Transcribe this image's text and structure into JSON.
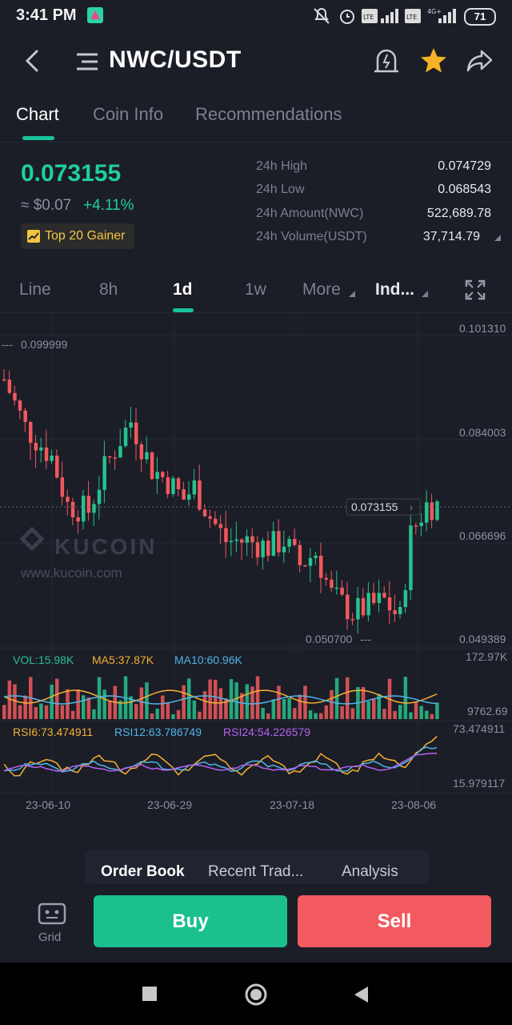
{
  "status_bar": {
    "time": "3:41 PM",
    "battery": "71"
  },
  "header": {
    "pair": "NWC/USDT"
  },
  "tabs": [
    {
      "label": "Chart",
      "active": true
    },
    {
      "label": "Coin Info",
      "active": false
    },
    {
      "label": "Recommendations",
      "active": false
    }
  ],
  "price": {
    "last": "0.073155",
    "approx_usd": "≈ $0.07",
    "change": "+4.11%",
    "badge": "Top 20 Gainer"
  },
  "stats": [
    {
      "label": "24h High",
      "value": "0.074729"
    },
    {
      "label": "24h Low",
      "value": "0.068543"
    },
    {
      "label": "24h Amount(NWC)",
      "value": "522,689.78"
    },
    {
      "label": "24h Volume(USDT)",
      "value": "37,714.79"
    }
  ],
  "intervals": [
    {
      "label": "Line",
      "active": false
    },
    {
      "label": "8h",
      "active": false
    },
    {
      "label": "1d",
      "active": true
    },
    {
      "label": "1w",
      "active": false
    },
    {
      "label": "More",
      "active": false
    },
    {
      "label": "Ind...",
      "active": false
    }
  ],
  "chart_data": {
    "type": "candlestick",
    "price_axis": [
      "0.101310",
      "0.084003",
      "0.066696",
      "0.049389"
    ],
    "high_marker": "0.099999",
    "low_marker": "0.050700",
    "current_price_tag": "0.073155",
    "watermark": "KUCOIN",
    "watermark_url": "www.kucoin.com",
    "volume": {
      "vol": "VOL:15.98K",
      "ma5": "MA5:37.87K",
      "ma10": "MA10:60.96K",
      "axis_max": "172.97K",
      "axis_min": "9762.69"
    },
    "rsi": {
      "rsi6": "RSI6:73.474911",
      "rsi12": "RSI12:63.786749",
      "rsi24": "RSI24:54.226579",
      "axis_max": "73.474911",
      "axis_min": "15.979117"
    },
    "x_labels": [
      "23-06-10",
      "23-06-29",
      "23-07-18",
      "23-08-06"
    ],
    "colors": {
      "up": "#26c28d",
      "down": "#f0595d",
      "ma5": "#f5b031",
      "ma10": "#4fb5e8",
      "rsi24": "#b461f0"
    }
  },
  "order_tabs": [
    {
      "label": "Order Book",
      "active": true
    },
    {
      "label": "Recent Trad...",
      "active": false
    },
    {
      "label": "Analysis",
      "active": false
    }
  ],
  "footer": {
    "grid_label": "Grid",
    "buy": "Buy",
    "sell": "Sell"
  }
}
